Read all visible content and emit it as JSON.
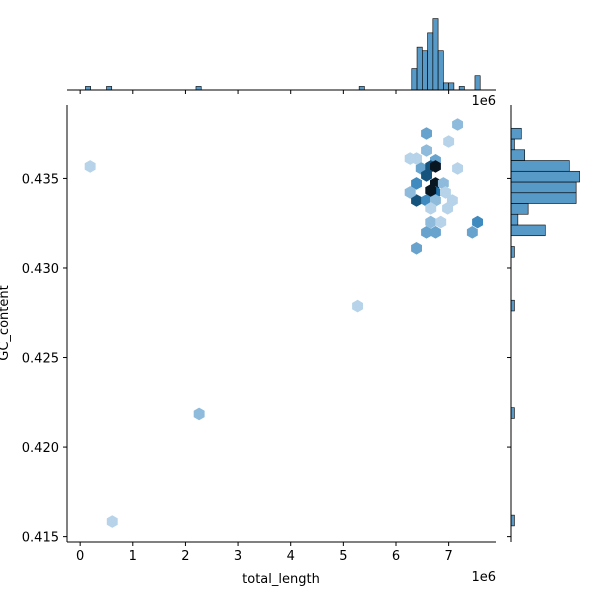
{
  "chart_data": {
    "type": "hexbin",
    "xlabel": "total_length",
    "ylabel": "GC_content",
    "x_offset": "1e6",
    "xlim": [
      -0.25,
      7.9
    ],
    "xticks": [
      0,
      1,
      2,
      3,
      4,
      5,
      6,
      7
    ],
    "ylim": [
      0.4147,
      0.4391
    ],
    "yticks": [
      0.415,
      {
        "value": 0.42,
        "label": "0.420"
      },
      0.425,
      {
        "value": 0.43,
        "label": "0.430"
      },
      0.435
    ],
    "color": "#1f77b4",
    "hexbin": {
      "x": [
        0.19,
        0.61,
        2.26,
        5.27,
        6.39,
        7.45,
        7.55,
        6.58,
        6.75,
        6.66,
        6.85,
        6.58,
        7.17,
        7.0,
        6.58,
        6.75,
        6.39,
        6.48,
        6.66,
        6.75,
        6.75,
        6.58,
        6.39,
        6.39,
        6.58,
        6.75,
        6.9,
        6.66,
        6.75,
        6.94,
        7.07,
        6.98,
        6.66,
        6.27,
        6.27,
        7.17
      ],
      "y": [
        0.43567,
        0.41584,
        0.42185,
        0.42787,
        0.4311,
        0.43199,
        0.43256,
        0.43199,
        0.43199,
        0.43256,
        0.43256,
        0.43751,
        0.43801,
        0.43706,
        0.43656,
        0.43601,
        0.43611,
        0.43556,
        0.43567,
        0.43567,
        0.43472,
        0.43517,
        0.43472,
        0.43377,
        0.43377,
        0.43422,
        0.43472,
        0.43433,
        0.43377,
        0.43422,
        0.43377,
        0.43333,
        0.43333,
        0.43422,
        0.43611,
        0.43556
      ],
      "values": [
        1,
        1,
        2,
        1,
        3,
        3,
        4,
        3,
        3,
        2,
        1,
        3,
        2,
        1,
        2,
        3,
        1,
        3,
        6,
        8,
        8,
        6,
        4,
        6,
        4,
        5,
        2,
        8,
        2,
        1,
        1,
        1,
        1,
        2,
        1,
        1
      ]
    },
    "top_hist": {
      "ylim": [
        0,
        21
      ],
      "bins": [
        0.1,
        0.2,
        0.3,
        0.4,
        0.5,
        0.6,
        0.7,
        0.8,
        0.9,
        1.0,
        1.1,
        1.2,
        1.3,
        1.4,
        1.5,
        1.6,
        1.7,
        1.8,
        1.9,
        2.0,
        2.1,
        2.2,
        2.3,
        2.4,
        2.5,
        2.6,
        2.7,
        2.8,
        2.9,
        3.0,
        3.1,
        3.2,
        3.3,
        3.4,
        3.5,
        3.6,
        3.7,
        3.8,
        3.9,
        4.0,
        4.1,
        4.2,
        4.3,
        4.4,
        4.5,
        4.6,
        4.7,
        4.8,
        4.9,
        5.0,
        5.1,
        5.2,
        5.3,
        5.4,
        5.5,
        5.6,
        5.7,
        5.8,
        5.9,
        6.0,
        6.1,
        6.2,
        6.3,
        6.4,
        6.5,
        6.6,
        6.7,
        6.8,
        6.9,
        7.0,
        7.1,
        7.2,
        7.3,
        7.4,
        7.5,
        7.6,
        7.7
      ],
      "counts": [
        1,
        0,
        0,
        0,
        1,
        0,
        0,
        0,
        0,
        0,
        0,
        0,
        0,
        0,
        0,
        0,
        0,
        0,
        0,
        0,
        0,
        1,
        0,
        0,
        0,
        0,
        0,
        0,
        0,
        0,
        0,
        0,
        0,
        0,
        0,
        0,
        0,
        0,
        0,
        0,
        0,
        0,
        0,
        0,
        0,
        0,
        0,
        0,
        0,
        0,
        0,
        0,
        1,
        0,
        0,
        0,
        0,
        0,
        0,
        0,
        0,
        0,
        6,
        12,
        11,
        16,
        20,
        11,
        2,
        2,
        0,
        1,
        0,
        0,
        4,
        0
      ]
    },
    "right_hist": {
      "xlim": [
        0,
        21
      ],
      "bins": [
        0.4156,
        0.4162,
        0.4168,
        0.4174,
        0.418,
        0.4186,
        0.4192,
        0.4198,
        0.4204,
        0.421,
        0.4216,
        0.4222,
        0.4228,
        0.4234,
        0.424,
        0.4246,
        0.4252,
        0.4258,
        0.4264,
        0.427,
        0.4276,
        0.4282,
        0.4288,
        0.4294,
        0.43,
        0.4306,
        0.4312,
        0.4318,
        0.4324,
        0.433,
        0.4336,
        0.4342,
        0.4348,
        0.4354,
        0.436,
        0.4366,
        0.4372,
        0.4378,
        0.4384
      ],
      "counts": [
        1,
        0,
        0,
        0,
        0,
        0,
        0,
        0,
        0,
        0,
        1,
        0,
        0,
        0,
        0,
        0,
        0,
        0,
        0,
        0,
        1,
        0,
        0,
        0,
        0,
        1,
        0,
        10,
        2,
        5,
        19,
        19,
        20,
        17,
        4,
        1,
        3,
        0
      ]
    }
  }
}
